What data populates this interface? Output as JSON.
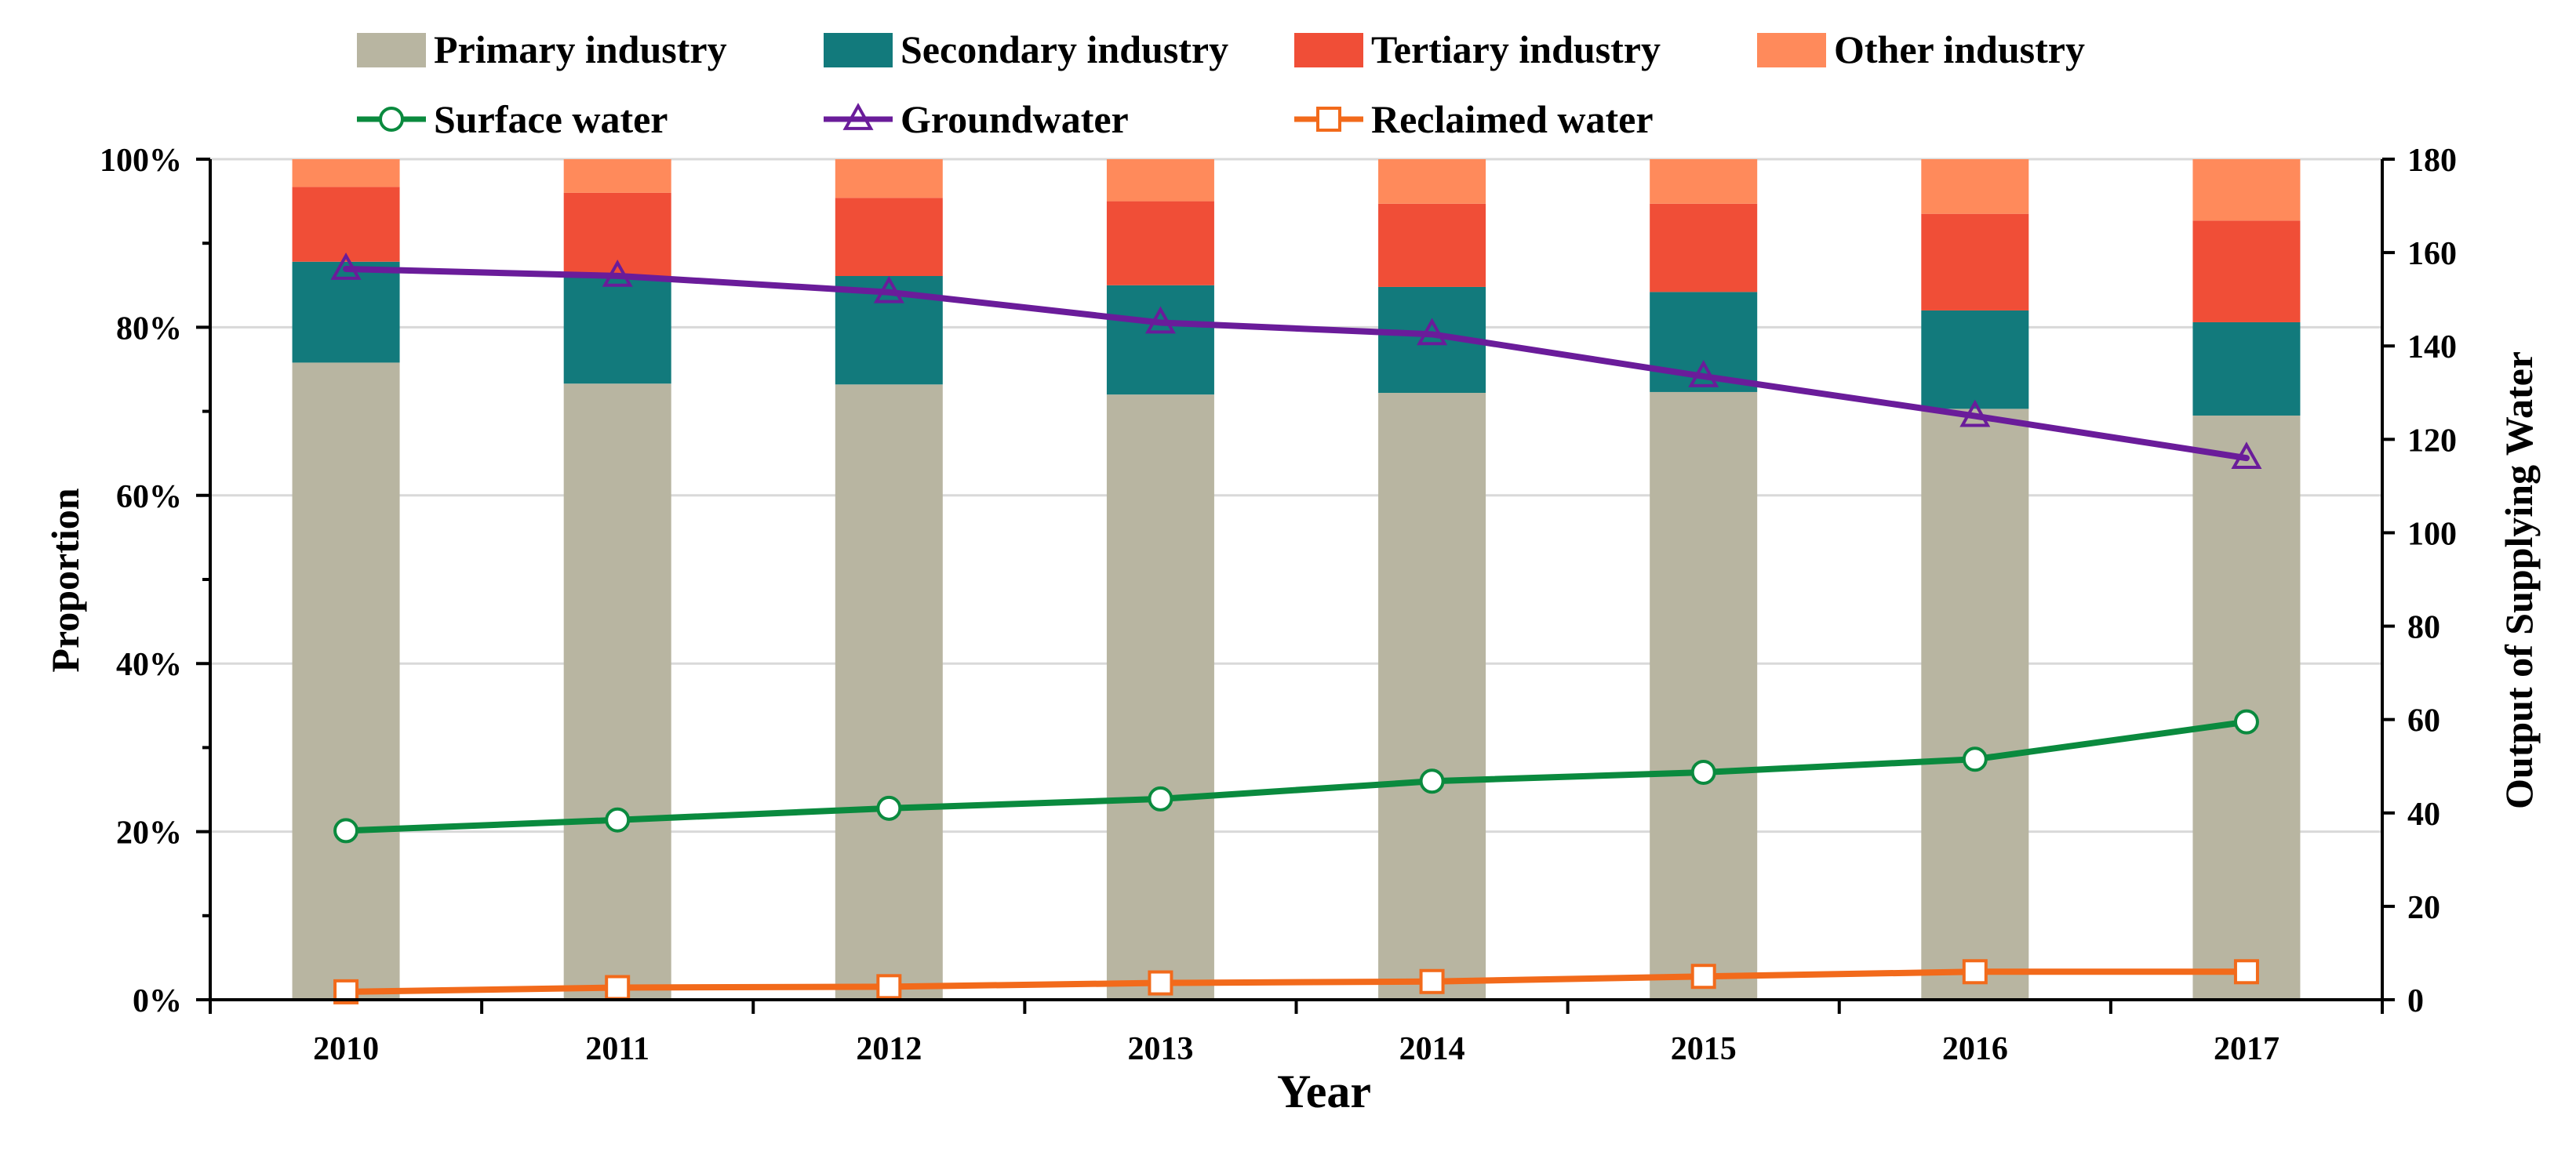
{
  "chart_data": {
    "type": "bar",
    "subtype": "stacked-percent-bar-with-lines",
    "categories": [
      "2010",
      "2011",
      "2012",
      "2013",
      "2014",
      "2015",
      "2016",
      "2017"
    ],
    "xlabel": "Year",
    "ylabel": "Proportion",
    "y2label": "Output of Supplying Water",
    "ylim": [
      0,
      100
    ],
    "y2lim": [
      0,
      180
    ],
    "yticks": [
      "0%",
      "20%",
      "40%",
      "60%",
      "80%",
      "100%"
    ],
    "y2ticks": [
      "0",
      "20",
      "40",
      "60",
      "80",
      "100",
      "120",
      "140",
      "160",
      "180"
    ],
    "gridlines": true,
    "legend_position": "top",
    "bar_series": [
      {
        "name": "Primary industry",
        "color": "#b8b5a1",
        "values": [
          75.8,
          73.3,
          73.2,
          72.0,
          72.2,
          72.3,
          70.3,
          69.5
        ]
      },
      {
        "name": "Secondary industry",
        "color": "#127a7c",
        "values": [
          12.0,
          12.7,
          12.9,
          13.0,
          12.6,
          11.9,
          11.7,
          11.1
        ]
      },
      {
        "name": "Tertiary industry",
        "color": "#f04e37",
        "values": [
          8.9,
          10.0,
          9.3,
          10.0,
          9.9,
          10.5,
          11.5,
          12.1
        ]
      },
      {
        "name": "Other industry",
        "color": "#ff8a5b",
        "values": [
          3.3,
          4.0,
          4.6,
          5.0,
          5.3,
          5.3,
          6.5,
          7.3
        ]
      }
    ],
    "line_series": [
      {
        "name": "Surface water",
        "color": "#0a8a3e",
        "marker": "circle",
        "values": [
          36.2,
          38.5,
          41.0,
          43.0,
          46.8,
          48.7,
          51.5,
          59.5
        ]
      },
      {
        "name": "Groundwater",
        "color": "#6a1c9a",
        "marker": "triangle",
        "values": [
          156.5,
          155.0,
          151.5,
          145.0,
          142.5,
          133.5,
          125.0,
          116.0
        ]
      },
      {
        "name": "Reclaimed water",
        "color": "#f26a1b",
        "marker": "square",
        "values": [
          1.7,
          2.6,
          2.8,
          3.6,
          3.9,
          5.0,
          6.0,
          6.0
        ]
      }
    ]
  }
}
